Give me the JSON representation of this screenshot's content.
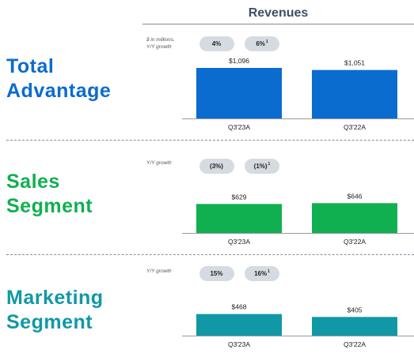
{
  "header": {
    "title": "Revenues"
  },
  "units_note": [
    "$ in millions.",
    "Y/Y growth"
  ],
  "growth_label": "Y/Y growth",
  "colors": {
    "total": "#0a6ccf",
    "sales": "#10b050",
    "marketing": "#1198a6",
    "pill": "#d6dbe1",
    "divider": "#7f8fa0"
  },
  "sections": [
    {
      "id": "total",
      "title_line1": "Total",
      "title_line2": "Advantage",
      "pills": [
        {
          "label": "4%",
          "superscript": ""
        },
        {
          "label": "6%",
          "superscript": "1"
        }
      ]
    },
    {
      "id": "sales",
      "title_line1": "Sales",
      "title_line2": "Segment",
      "pills": [
        {
          "label": "(3%)",
          "superscript": ""
        },
        {
          "label": "(1%)",
          "superscript": "1"
        }
      ]
    },
    {
      "id": "marketing",
      "title_line1": "Marketing",
      "title_line2": "Segment",
      "pills": [
        {
          "label": "15%",
          "superscript": ""
        },
        {
          "label": "16%",
          "superscript": "1"
        }
      ]
    }
  ],
  "chart_data": [
    {
      "type": "bar",
      "title": "Revenues",
      "categories": [
        "Q3'23A",
        "Q3'22A"
      ],
      "values": [
        1096,
        1051
      ],
      "data_labels": [
        "$1,096",
        "$1,051"
      ],
      "ylim": [
        0,
        1200
      ],
      "grid": false,
      "color": "#0a6ccf"
    },
    {
      "type": "bar",
      "categories": [
        "Q3'23A",
        "Q3'22A"
      ],
      "values": [
        629,
        646
      ],
      "data_labels": [
        "$629",
        "$646"
      ],
      "ylim": [
        0,
        1200
      ],
      "grid": false,
      "color": "#10b050"
    },
    {
      "type": "bar",
      "categories": [
        "Q3'23A",
        "Q3'22A"
      ],
      "values": [
        468,
        405
      ],
      "data_labels": [
        "$468",
        "$405"
      ],
      "ylim": [
        0,
        1200
      ],
      "grid": false,
      "color": "#1198a6"
    }
  ]
}
